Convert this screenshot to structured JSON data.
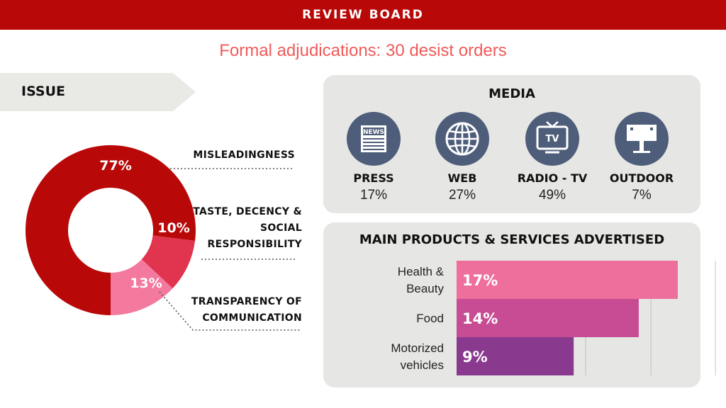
{
  "header": {
    "title": "REVIEW BOARD"
  },
  "subtitle": "Formal adjudications: 30 desist orders",
  "issue": {
    "label": "ISSUE"
  },
  "colors": {
    "brand_red": "#b90808",
    "subtitle": "#f05a5a",
    "donut": [
      "#b90808",
      "#e0344f",
      "#f4799e"
    ],
    "bars": [
      "#ee6f9c",
      "#c84c93",
      "#8a3a8e"
    ],
    "media_icon_bg": "#4e5d7a",
    "panel_bg": "#e6e6e4"
  },
  "media": {
    "title": "MEDIA",
    "items": [
      {
        "name": "PRESS",
        "pct": "17%",
        "icon": "newspaper-icon",
        "icon_text": "NEWS"
      },
      {
        "name": "WEB",
        "pct": "27%",
        "icon": "globe-icon"
      },
      {
        "name": "RADIO - TV",
        "pct": "49%",
        "icon": "tv-icon",
        "icon_text": "TV"
      },
      {
        "name": "OUTDOOR",
        "pct": "7%",
        "icon": "billboard-icon"
      }
    ]
  },
  "products": {
    "title": "MAIN PRODUCTS & SERVICES ADVERTISED"
  },
  "chart_data": [
    {
      "type": "pie",
      "categories": [
        "MISLEADINGNESS",
        "TASTE, DECENCY & SOCIAL RESPONSIBILITY",
        "TRANSPARENCY OF COMMUNICATION"
      ],
      "category_lines": [
        [
          "MISLEADINGNESS"
        ],
        [
          "TASTE, DECENCY &",
          "SOCIAL",
          "RESPONSIBILITY"
        ],
        [
          "TRANSPARENCY OF",
          "COMMUNICATION"
        ]
      ],
      "values": [
        77,
        10,
        13
      ],
      "labels": [
        "77%",
        "10%",
        "13%"
      ],
      "donut": true
    },
    {
      "type": "bar",
      "orientation": "horizontal",
      "categories": [
        "Health & Beauty",
        "Food",
        "Motorized vehicles"
      ],
      "category_lines": [
        [
          "Health &",
          "Beauty"
        ],
        [
          "Food"
        ],
        [
          "Motorized",
          "vehicles"
        ]
      ],
      "values": [
        17,
        14,
        9
      ],
      "labels": [
        "17%",
        "14%",
        "9%"
      ],
      "xlim": [
        0,
        20
      ],
      "grid": true
    }
  ]
}
